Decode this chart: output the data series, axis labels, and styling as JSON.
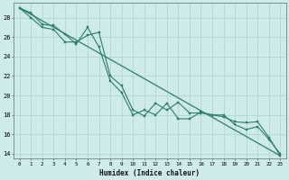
{
  "xlabel": "Humidex (Indice chaleur)",
  "ylabel": "",
  "bg_color": "#ceeaea",
  "grid_color": "#b0d8d0",
  "line_color": "#2e7d6e",
  "xlim": [
    -0.5,
    23.5
  ],
  "ylim": [
    13.5,
    29.5
  ],
  "yticks": [
    14,
    16,
    18,
    20,
    22,
    24,
    26,
    28
  ],
  "xticks": [
    0,
    1,
    2,
    3,
    4,
    5,
    6,
    7,
    8,
    9,
    10,
    11,
    12,
    13,
    14,
    15,
    16,
    17,
    18,
    19,
    20,
    21,
    22,
    23
  ],
  "series1_x": [
    0,
    1,
    2,
    3,
    4,
    5,
    6,
    7,
    8,
    9,
    10,
    11,
    12,
    13,
    14,
    15,
    16,
    17,
    18,
    19,
    20,
    21,
    22,
    23
  ],
  "series1_y": [
    29.0,
    28.5,
    27.3,
    27.2,
    26.3,
    25.3,
    27.0,
    25.0,
    21.5,
    20.3,
    18.0,
    18.5,
    18.0,
    19.2,
    17.6,
    17.6,
    18.3,
    18.0,
    18.0,
    17.0,
    16.5,
    16.8,
    15.5,
    14.0
  ],
  "series2_x": [
    0,
    1,
    2,
    3,
    4,
    5,
    6,
    7,
    8,
    9,
    10,
    11,
    12,
    13,
    14,
    15,
    16,
    17,
    18,
    19,
    20,
    21,
    22,
    23
  ],
  "series2_y": [
    29.0,
    28.0,
    27.0,
    26.8,
    25.5,
    25.5,
    26.2,
    26.5,
    22.0,
    21.0,
    18.5,
    17.9,
    19.2,
    18.5,
    19.3,
    18.2,
    18.2,
    18.0,
    17.8,
    17.3,
    17.2,
    17.3,
    15.7,
    13.8
  ],
  "trend_x": [
    0,
    23
  ],
  "trend_y": [
    29.0,
    13.8
  ]
}
